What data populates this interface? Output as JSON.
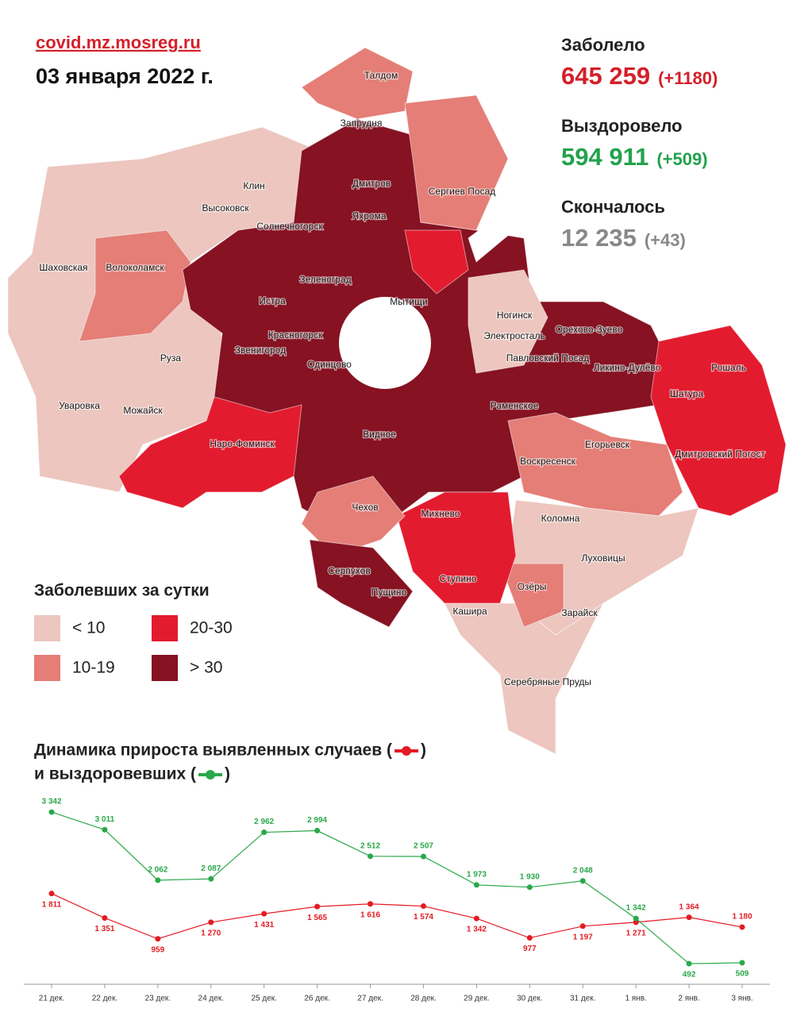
{
  "header": {
    "site": "covid.mz.mosreg.ru",
    "date": "03 января 2022 г."
  },
  "stats": [
    {
      "label": "Заболело",
      "value": "645 259",
      "delta": "(+1180)"
    },
    {
      "label": "Выздоровело",
      "value": "594 911",
      "delta": "(+509)"
    },
    {
      "label": "Скончалось",
      "value": "12 235",
      "delta": "(+43)"
    }
  ],
  "map": {
    "labels": [
      "Талдом",
      "Запрудня",
      "Клин",
      "Дмитров",
      "Сергиев Посад",
      "Высоковск",
      "Яхрома",
      "Солнечногорск",
      "Шаховская",
      "Волоколамск",
      "Зеленоград",
      "Истра",
      "Мытищи",
      "Ногинск",
      "Орехово-Зуево",
      "Электросталь",
      "Красногорск",
      "Павловский Посад",
      "Звенигород",
      "Ликино-Дулёво",
      "Одинцово",
      "Руза",
      "Рошаль",
      "Шатура",
      "Уваровка",
      "Можайск",
      "Раменское",
      "Наро-Фоминск",
      "Видное",
      "Егорьевск",
      "Дмитровский Погост",
      "Воскресенск",
      "Чехов",
      "Михнево",
      "Коломна",
      "Луховицы",
      "Серпухов",
      "Пущино",
      "Ступино",
      "Озёры",
      "Кашира",
      "Зарайск",
      "Серебряные Пруды"
    ],
    "legend_title": "Заболевших за сутки",
    "legend": [
      {
        "label": "< 10",
        "color": "#ecc6bf"
      },
      {
        "label": "20-30",
        "color": "#e31b2e"
      },
      {
        "label": "10-19",
        "color": "#e47e77"
      },
      {
        "label": "> 30",
        "color": "#861222"
      }
    ]
  },
  "chart_data": {
    "type": "line",
    "title": "Динамика прироста выявленных случаев (",
    "title_close": ")",
    "subtitle": "и выздоровевших (",
    "subtitle_close": ")",
    "categories": [
      "21 дек.",
      "22 дек.",
      "23 дек.",
      "24 дек.",
      "25 дек.",
      "26 дек.",
      "27 дек.",
      "28 дек.",
      "29 дек.",
      "30 дек.",
      "31 дек.",
      "1 янв.",
      "2 янв.",
      "3 янв."
    ],
    "series": [
      {
        "color": "#e31b23",
        "values": [
          1811,
          1351,
          959,
          1270,
          1431,
          1565,
          1616,
          1574,
          1342,
          977,
          1197,
          1271,
          1364,
          1180
        ],
        "value_labels": [
          "1 811",
          "1 351",
          "959",
          "1 270",
          "1 431",
          "1 565",
          "1 616",
          "1 574",
          "1 342",
          "977",
          "1 197",
          "1 271",
          "1 364",
          "1 180"
        ]
      },
      {
        "color": "#2aa84a",
        "values": [
          3342,
          3011,
          2062,
          2087,
          2962,
          2994,
          2512,
          2507,
          1973,
          1930,
          2048,
          1342,
          492,
          509
        ],
        "value_labels": [
          "3 342",
          "3 011",
          "2 062",
          "2 087",
          "2 962",
          "2 994",
          "2 512",
          "2 507",
          "1 973",
          "1 930",
          "2 048",
          "1 342",
          "492",
          "509"
        ]
      }
    ],
    "ylim": [
      0,
      3500
    ]
  }
}
